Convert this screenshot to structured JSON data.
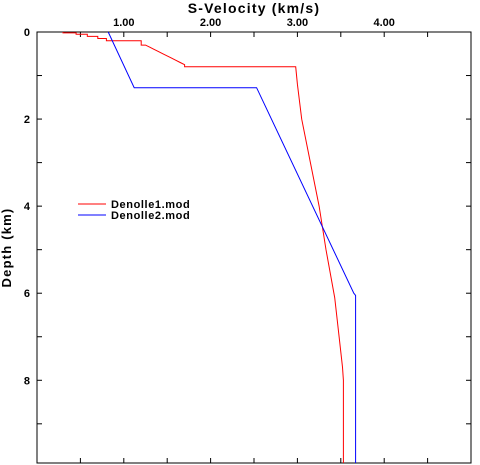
{
  "chart_data": {
    "type": "line",
    "title": "",
    "xlabel": "S-Velocity (km/s)",
    "ylabel": "Depth (km)",
    "xlim": [
      0.0,
      5.0
    ],
    "ylim": [
      0.0,
      9.9
    ],
    "y_inverted": true,
    "x_axis_position": "top",
    "x_ticks": [
      0.0,
      0.5,
      1.0,
      1.5,
      2.0,
      2.5,
      3.0,
      3.5,
      4.0,
      4.5,
      5.0
    ],
    "x_tick_labels": [
      {
        "value": 1.0,
        "label": "1.00"
      },
      {
        "value": 2.0,
        "label": "2.00"
      },
      {
        "value": 3.0,
        "label": "3.00"
      },
      {
        "value": 4.0,
        "label": "4.00"
      }
    ],
    "y_ticks": [
      0,
      1,
      2,
      3,
      4,
      5,
      6,
      7,
      8,
      9
    ],
    "y_tick_labels": [
      {
        "value": 0,
        "label": "0"
      },
      {
        "value": 2,
        "label": "2"
      },
      {
        "value": 4,
        "label": "4"
      },
      {
        "value": 6,
        "label": "6"
      },
      {
        "value": 8,
        "label": "8"
      }
    ],
    "grid": false,
    "legend_placement": "middle-left",
    "series": [
      {
        "name": "Denolle1.mod",
        "color": "#ff0000",
        "points": [
          [
            0.3,
            0.0
          ],
          [
            0.3,
            0.02
          ],
          [
            0.45,
            0.02
          ],
          [
            0.45,
            0.05
          ],
          [
            0.58,
            0.05
          ],
          [
            0.58,
            0.1
          ],
          [
            0.7,
            0.1
          ],
          [
            0.7,
            0.15
          ],
          [
            0.8,
            0.15
          ],
          [
            0.8,
            0.2
          ],
          [
            1.2,
            0.2
          ],
          [
            1.2,
            0.3
          ],
          [
            1.25,
            0.3
          ],
          [
            1.3,
            0.35
          ],
          [
            1.35,
            0.4
          ],
          [
            1.4,
            0.45
          ],
          [
            1.45,
            0.5
          ],
          [
            1.5,
            0.55
          ],
          [
            1.55,
            0.6
          ],
          [
            1.6,
            0.65
          ],
          [
            1.65,
            0.7
          ],
          [
            1.7,
            0.75
          ],
          [
            1.7,
            0.8
          ],
          [
            2.98,
            0.8
          ],
          [
            3.0,
            1.2
          ],
          [
            3.05,
            2.0
          ],
          [
            3.15,
            3.0
          ],
          [
            3.25,
            4.0
          ],
          [
            3.33,
            5.0
          ],
          [
            3.43,
            6.1
          ],
          [
            3.48,
            7.0
          ],
          [
            3.52,
            7.7
          ],
          [
            3.53,
            8.0
          ],
          [
            3.53,
            9.9
          ]
        ]
      },
      {
        "name": "Denolle2.mod",
        "color": "#0000ff",
        "points": [
          [
            0.82,
            0.0
          ],
          [
            1.12,
            1.28
          ],
          [
            2.53,
            1.28
          ],
          [
            3.65,
            6.0
          ],
          [
            3.67,
            6.05
          ],
          [
            3.67,
            9.9
          ]
        ]
      }
    ]
  }
}
